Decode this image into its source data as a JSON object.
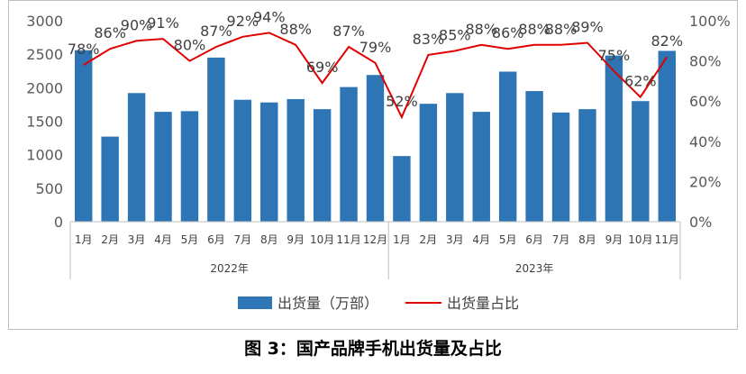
{
  "chart_data": {
    "type": "bar",
    "categories": [
      {
        "month": "1月",
        "year": "2022年"
      },
      {
        "month": "2月",
        "year": "2022年"
      },
      {
        "month": "3月",
        "year": "2022年"
      },
      {
        "month": "4月",
        "year": "2022年"
      },
      {
        "month": "5月",
        "year": "2022年"
      },
      {
        "month": "6月",
        "year": "2022年"
      },
      {
        "month": "7月",
        "year": "2022年"
      },
      {
        "month": "8月",
        "year": "2022年"
      },
      {
        "month": "9月",
        "year": "2022年"
      },
      {
        "month": "10月",
        "year": "2022年"
      },
      {
        "month": "11月",
        "year": "2022年"
      },
      {
        "month": "12月",
        "year": "2022年"
      },
      {
        "month": "1月",
        "year": "2023年"
      },
      {
        "month": "2月",
        "year": "2023年"
      },
      {
        "month": "3月",
        "year": "2023年"
      },
      {
        "month": "4月",
        "year": "2023年"
      },
      {
        "month": "5月",
        "year": "2023年"
      },
      {
        "month": "6月",
        "year": "2023年"
      },
      {
        "month": "7月",
        "year": "2023年"
      },
      {
        "month": "8月",
        "year": "2023年"
      },
      {
        "month": "9月",
        "year": "2023年"
      },
      {
        "month": "10月",
        "year": "2023年"
      },
      {
        "month": "11月",
        "year": "2023年"
      }
    ],
    "years": [
      "2022年",
      "2023年"
    ],
    "series": [
      {
        "name": "出货量（万部）",
        "type": "bar",
        "axis": "left",
        "color": "#2e75b6",
        "values": [
          2560,
          1270,
          1920,
          1640,
          1650,
          2450,
          1820,
          1780,
          1830,
          1680,
          2010,
          2190,
          980,
          1760,
          1920,
          1640,
          2240,
          1950,
          1630,
          1680,
          2480,
          1800,
          2550
        ]
      },
      {
        "name": "出货量占比",
        "type": "line",
        "axis": "right",
        "color": "#e00000",
        "values": [
          78,
          86,
          90,
          91,
          80,
          87,
          92,
          94,
          88,
          69,
          87,
          79,
          52,
          83,
          85,
          88,
          86,
          88,
          88,
          89,
          75,
          62,
          82
        ],
        "labels": [
          "78%",
          "86%",
          "90%",
          "91%",
          "80%",
          "87%",
          "92%",
          "94%",
          "88%",
          "69%",
          "87%",
          "79%",
          "52%",
          "83%",
          "85%",
          "88%",
          "86%",
          "88%",
          "88%",
          "89%",
          "75%",
          "62%",
          "82%"
        ]
      }
    ],
    "y_left": {
      "min": 0,
      "max": 3000,
      "ticks": [
        "0",
        "500",
        "1000",
        "1500",
        "2000",
        "2500",
        "3000"
      ]
    },
    "y_right": {
      "min": 0,
      "max": 100,
      "ticks": [
        "0%",
        "20%",
        "40%",
        "60%",
        "80%",
        "100%"
      ]
    },
    "legend": {
      "position": "bottom"
    },
    "grid": false
  },
  "caption": "图 3：国产品牌手机出货量及占比"
}
